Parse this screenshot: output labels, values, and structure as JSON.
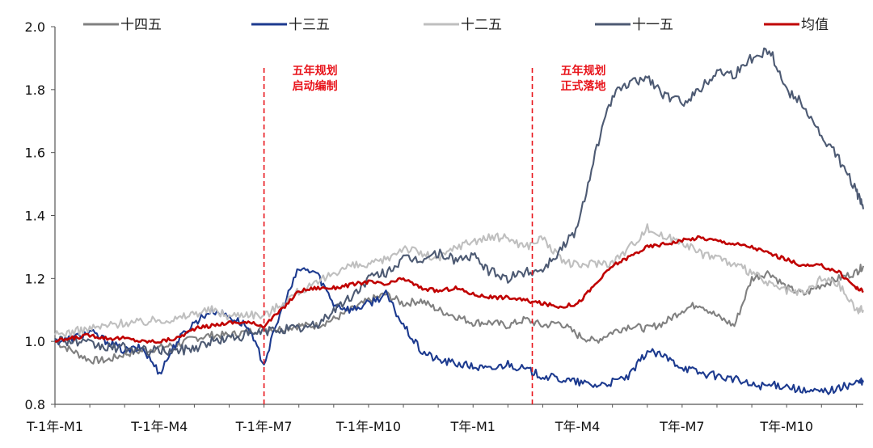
{
  "chart_data": {
    "type": "line",
    "title": "",
    "xlabel": "",
    "ylabel": "",
    "ylim": [
      0.8,
      2.0
    ],
    "yticks": [
      "0.8",
      "1.0",
      "1.2",
      "1.4",
      "1.6",
      "1.8",
      "2.0"
    ],
    "x_tick_labels": [
      "T-1年-M1",
      "T-1年-M4",
      "T-1年-M7",
      "T-1年-M10",
      "T年-M1",
      "T年-M4",
      "T年-M7",
      "T年-M10"
    ],
    "x_range_months": [
      0,
      23.2
    ],
    "legend": [
      {
        "name": "十四五",
        "color": "#808080"
      },
      {
        "name": "十三五",
        "color": "#1c3a8f"
      },
      {
        "name": "十二五",
        "color": "#bfbfbf"
      },
      {
        "name": "十一五",
        "color": "#4d5a73"
      },
      {
        "name": "均值",
        "color": "#c00000"
      }
    ],
    "annotations": [
      {
        "x": 6.0,
        "lines": [
          "五年规划",
          "启动编制"
        ],
        "color": "#e8141b"
      },
      {
        "x": 13.7,
        "lines": [
          "五年规划",
          "正式落地"
        ],
        "color": "#e8141b"
      }
    ],
    "series": [
      {
        "name": "十四五",
        "color": "#808080",
        "x": [
          0,
          0.5,
          1,
          1.5,
          2,
          2.5,
          3,
          3.5,
          4,
          4.5,
          5,
          5.5,
          6,
          6.5,
          7,
          7.5,
          8,
          8.5,
          9,
          9.5,
          10,
          10.5,
          11,
          11.5,
          12,
          12.5,
          13,
          13.5,
          14,
          14.5,
          15,
          15.5,
          16,
          16.5,
          17,
          17.5,
          18,
          18.5,
          19,
          19.5,
          20,
          20.5,
          21,
          21.5,
          22,
          22.5,
          23,
          23.2
        ],
        "values": [
          1.0,
          0.97,
          0.94,
          0.94,
          0.96,
          0.97,
          0.98,
          0.99,
          1.01,
          1.02,
          1.02,
          1.03,
          1.04,
          1.04,
          1.05,
          1.05,
          1.07,
          1.1,
          1.13,
          1.15,
          1.12,
          1.13,
          1.1,
          1.08,
          1.06,
          1.06,
          1.05,
          1.07,
          1.05,
          1.06,
          1.02,
          1.0,
          1.03,
          1.05,
          1.04,
          1.06,
          1.1,
          1.12,
          1.08,
          1.05,
          1.2,
          1.22,
          1.17,
          1.15,
          1.18,
          1.2,
          1.22,
          1.24
        ]
      },
      {
        "name": "十三五",
        "color": "#1c3a8f",
        "x": [
          0,
          0.5,
          1,
          1.5,
          2,
          2.5,
          3,
          3.5,
          4,
          4.5,
          5,
          5.5,
          6,
          6.5,
          7,
          7.5,
          8,
          8.5,
          9,
          9.5,
          10,
          10.5,
          11,
          11.5,
          12,
          12.5,
          13,
          13.5,
          14,
          14.5,
          15,
          15.5,
          16,
          16.5,
          17,
          17.5,
          18,
          18.5,
          19,
          19.5,
          20,
          20.5,
          21,
          21.5,
          22,
          22.5,
          23,
          23.2
        ],
        "values": [
          1.0,
          1.01,
          1.03,
          1.0,
          0.97,
          0.98,
          0.9,
          1.0,
          1.06,
          1.1,
          1.08,
          1.05,
          0.93,
          1.1,
          1.23,
          1.22,
          1.12,
          1.1,
          1.12,
          1.15,
          1.05,
          0.97,
          0.94,
          0.93,
          0.92,
          0.91,
          0.93,
          0.91,
          0.89,
          0.88,
          0.87,
          0.86,
          0.87,
          0.89,
          0.97,
          0.95,
          0.92,
          0.9,
          0.89,
          0.88,
          0.86,
          0.86,
          0.86,
          0.84,
          0.84,
          0.85,
          0.87,
          0.87
        ]
      },
      {
        "name": "十二五",
        "color": "#bfbfbf",
        "x": [
          0,
          0.5,
          1,
          1.5,
          2,
          2.5,
          3,
          3.5,
          4,
          4.5,
          5,
          5.5,
          6,
          6.5,
          7,
          7.5,
          8,
          8.5,
          9,
          9.5,
          10,
          10.5,
          11,
          11.5,
          12,
          12.5,
          13,
          13.5,
          14,
          14.5,
          15,
          15.5,
          16,
          16.5,
          17,
          17.5,
          18,
          18.5,
          19,
          19.5,
          20,
          20.5,
          21,
          21.5,
          22,
          22.5,
          23,
          23.2
        ],
        "values": [
          1.02,
          1.03,
          1.04,
          1.05,
          1.06,
          1.06,
          1.07,
          1.07,
          1.09,
          1.1,
          1.08,
          1.09,
          1.08,
          1.12,
          1.16,
          1.18,
          1.22,
          1.24,
          1.24,
          1.26,
          1.3,
          1.28,
          1.26,
          1.3,
          1.32,
          1.33,
          1.33,
          1.3,
          1.33,
          1.26,
          1.24,
          1.25,
          1.25,
          1.3,
          1.36,
          1.33,
          1.32,
          1.28,
          1.27,
          1.24,
          1.22,
          1.18,
          1.16,
          1.15,
          1.2,
          1.18,
          1.1,
          1.1
        ]
      },
      {
        "name": "十一五",
        "color": "#4d5a73",
        "x": [
          0,
          0.5,
          1,
          1.5,
          2,
          2.5,
          3,
          3.5,
          4,
          4.5,
          5,
          5.5,
          6,
          6.5,
          7,
          7.5,
          8,
          8.5,
          9,
          9.5,
          10,
          10.5,
          11,
          11.5,
          12,
          12.5,
          13,
          13.5,
          14,
          14.5,
          15,
          15.5,
          16,
          16.5,
          17,
          17.5,
          18,
          18.5,
          19,
          19.5,
          20,
          20.5,
          21,
          21.5,
          22,
          22.5,
          23,
          23.2
        ],
        "values": [
          1.01,
          1.0,
          0.99,
          0.98,
          0.98,
          0.97,
          0.97,
          0.97,
          0.98,
          1.0,
          1.01,
          1.02,
          1.03,
          1.04,
          1.04,
          1.05,
          1.1,
          1.14,
          1.2,
          1.22,
          1.26,
          1.26,
          1.28,
          1.26,
          1.27,
          1.22,
          1.2,
          1.22,
          1.23,
          1.29,
          1.36,
          1.6,
          1.78,
          1.82,
          1.84,
          1.78,
          1.76,
          1.8,
          1.86,
          1.85,
          1.9,
          1.93,
          1.8,
          1.75,
          1.65,
          1.58,
          1.48,
          1.42
        ]
      },
      {
        "name": "均值",
        "color": "#c00000",
        "x": [
          0,
          0.5,
          1,
          1.5,
          2,
          2.5,
          3,
          3.5,
          4,
          4.5,
          5,
          5.5,
          6,
          6.5,
          7,
          7.5,
          8,
          8.5,
          9,
          9.5,
          10,
          10.5,
          11,
          11.5,
          12,
          12.5,
          13,
          13.5,
          14,
          14.5,
          15,
          15.5,
          16,
          16.5,
          17,
          17.5,
          18,
          18.5,
          19,
          19.5,
          20,
          20.5,
          21,
          21.5,
          22,
          22.5,
          23,
          23.2
        ],
        "values": [
          1.0,
          1.01,
          1.02,
          1.01,
          1.01,
          1.0,
          1.0,
          1.01,
          1.04,
          1.05,
          1.06,
          1.06,
          1.05,
          1.1,
          1.16,
          1.17,
          1.17,
          1.18,
          1.19,
          1.18,
          1.2,
          1.17,
          1.16,
          1.17,
          1.15,
          1.14,
          1.14,
          1.13,
          1.12,
          1.11,
          1.12,
          1.18,
          1.24,
          1.27,
          1.3,
          1.31,
          1.32,
          1.33,
          1.32,
          1.31,
          1.3,
          1.28,
          1.26,
          1.24,
          1.24,
          1.22,
          1.17,
          1.16
        ]
      }
    ]
  }
}
